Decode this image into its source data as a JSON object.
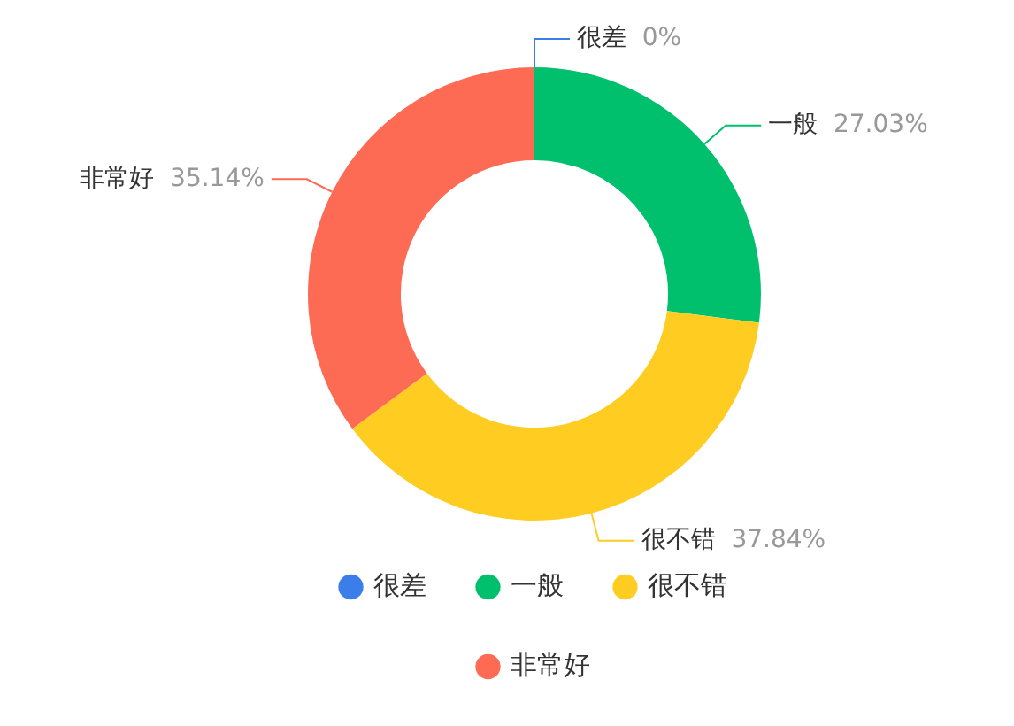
{
  "chart_data": {
    "type": "donut",
    "categories": [
      "很差",
      "一般",
      "很不错",
      "非常好"
    ],
    "values": [
      0,
      27.03,
      37.84,
      35.14
    ],
    "colors": [
      "#3b7ee9",
      "#00c06e",
      "#ffcc22",
      "#fd6b55"
    ],
    "value_labels": [
      "0%",
      "27.03%",
      "37.84%",
      "35.14%"
    ],
    "legend": "bottom"
  }
}
